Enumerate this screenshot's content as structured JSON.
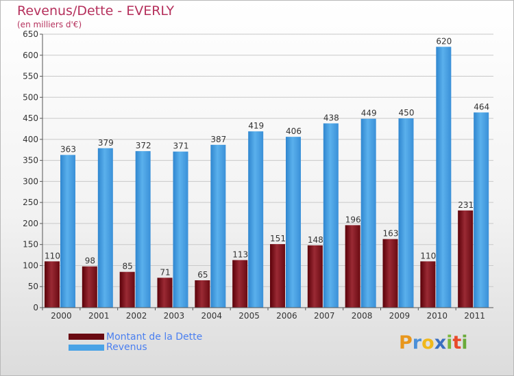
{
  "chart_data": {
    "type": "bar",
    "title": "Revenus/Dette - EVERLY",
    "subtitle": "(en milliers d'€)",
    "categories": [
      "2000",
      "2001",
      "2002",
      "2003",
      "2004",
      "2005",
      "2006",
      "2007",
      "2008",
      "2009",
      "2010",
      "2011"
    ],
    "series": [
      {
        "name": "Montant de la Dette",
        "color": "#7a1018",
        "values": [
          110,
          98,
          85,
          71,
          65,
          113,
          151,
          148,
          196,
          163,
          110,
          231
        ]
      },
      {
        "name": "Revenus",
        "color": "#4aa3e6",
        "values": [
          363,
          379,
          372,
          371,
          387,
          419,
          406,
          438,
          449,
          450,
          620,
          464
        ]
      }
    ],
    "ylim": [
      0,
      650
    ],
    "yticks": [
      0,
      50,
      100,
      150,
      200,
      250,
      300,
      350,
      400,
      450,
      500,
      550,
      600,
      650
    ],
    "grid": true,
    "legend_position": "bottom-left"
  },
  "logo": {
    "letters": [
      "P",
      "r",
      "o",
      "x",
      "i",
      "t",
      "i"
    ],
    "colors": [
      "#e8961c",
      "#4a8fd8",
      "#f0b81c",
      "#3a6fc0",
      "#7ab83a",
      "#e84a2a",
      "#6aaa3a"
    ]
  }
}
